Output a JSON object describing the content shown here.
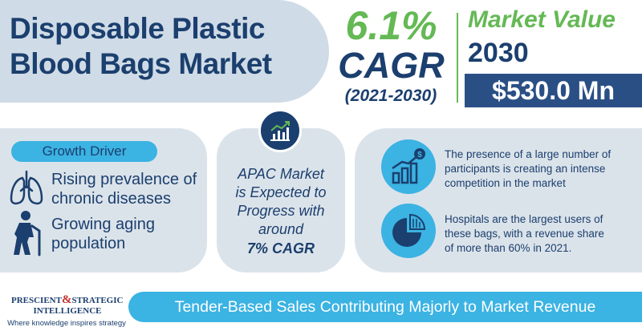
{
  "title": {
    "line1": "Disposable Plastic",
    "line2": "Blood Bags Market"
  },
  "cagr": {
    "value": "6.1%",
    "label": "CAGR",
    "period": "(2021-2030)"
  },
  "market_value": {
    "title": "Market Value",
    "year": "2030",
    "amount": "$530.0 Mn"
  },
  "growth_driver": {
    "heading": "Growth Driver",
    "items": [
      {
        "line1": "Rising prevalence of",
        "line2": "chronic diseases",
        "icon": "lungs-icon"
      },
      {
        "line1": "Growing aging",
        "line2": "population",
        "icon": "elderly-person-icon"
      }
    ]
  },
  "apac": {
    "line1": "APAC Market",
    "line2": "is Expected to",
    "line3": "Progress with",
    "line4": "around",
    "cagr": "7% CAGR",
    "icon": "growth-chart-icon"
  },
  "facts": [
    {
      "line1": "The presence of a large number of",
      "line2": "participants is creating an intense",
      "line3": "competition in the market",
      "icon": "revenue-growth-icon"
    },
    {
      "line1": "Hospitals are the largest users of",
      "line2": "these bags, with a revenue share",
      "line3": "of more than 60% in 2021.",
      "icon": "pie-chart-icon"
    }
  ],
  "logo": {
    "line1a": "PRESCIENT",
    "amp": "&",
    "line1b": "STRATEGIC",
    "line2": "INTELLIGENCE",
    "tagline": "Where knowledge inspires strategy"
  },
  "bottom_banner": "Tender-Based Sales Contributing Majorly to Market Revenue",
  "colors": {
    "navy": "#1b3f6e",
    "green": "#64b954",
    "sky": "#3bb3e3",
    "panel": "#dbe3ea",
    "title_bg": "#cfdbe6",
    "value_box": "#2a4f85",
    "logo_red": "#c4302b"
  }
}
